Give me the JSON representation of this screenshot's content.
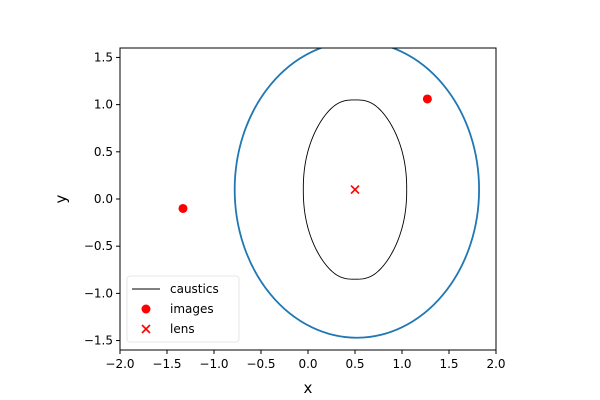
{
  "chart_data": {
    "type": "scatter",
    "xlabel": "x",
    "ylabel": "y",
    "xlim": [
      -2.0,
      2.0
    ],
    "ylim": [
      -1.6,
      1.6
    ],
    "xticks": [
      -2.0,
      -1.5,
      -1.0,
      -0.5,
      0.0,
      0.5,
      1.0,
      1.5,
      2.0
    ],
    "xtick_labels": [
      "−2.0",
      "−1.5",
      "−1.0",
      "−0.5",
      "0.0",
      "0.5",
      "1.0",
      "1.5",
      "2.0"
    ],
    "yticks": [
      -1.5,
      -1.0,
      -0.5,
      0.0,
      0.5,
      1.0,
      1.5
    ],
    "ytick_labels": [
      "−1.5",
      "−1.0",
      "−0.5",
      "0.0",
      "0.5",
      "1.0",
      "1.5"
    ],
    "grid": false,
    "legend_position": "lower-left",
    "critical_curve": {
      "type": "ellipse",
      "center": [
        0.52,
        0.1
      ],
      "semi_axis_x": 1.3,
      "semi_axis_y": 1.57,
      "color": "#1f77b4"
    },
    "caustic": {
      "center": [
        0.5,
        0.1
      ],
      "half_width": 0.55,
      "half_height": 0.95,
      "color": "#000000"
    },
    "series": [
      {
        "name": "caustics",
        "kind": "line",
        "color": "#000000"
      },
      {
        "name": "images",
        "kind": "scatter",
        "marker": "circle",
        "color": "#ff0000",
        "points": [
          [
            1.27,
            1.06
          ],
          [
            -1.33,
            -0.1
          ]
        ]
      },
      {
        "name": "lens",
        "kind": "scatter",
        "marker": "x",
        "color": "#ff0000",
        "points": [
          [
            0.5,
            0.1
          ]
        ]
      }
    ]
  }
}
